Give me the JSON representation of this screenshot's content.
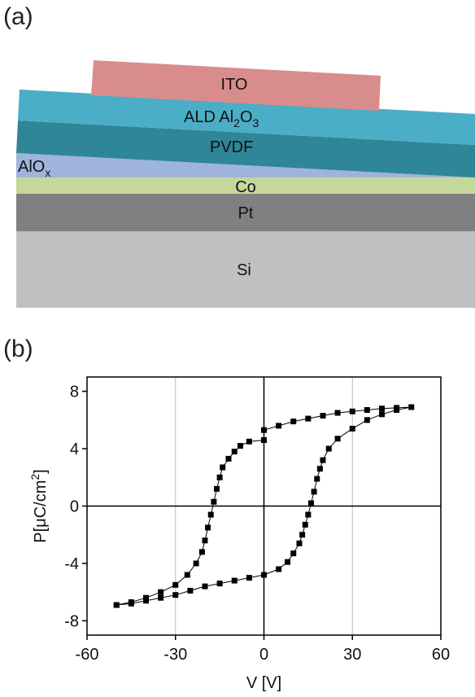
{
  "panels": {
    "a": "(a)",
    "b": "(b)"
  },
  "stack": {
    "layers": [
      {
        "id": "ito",
        "label": "ITO",
        "color": "#d98c8c"
      },
      {
        "id": "al2o3",
        "label": "ALD Al",
        "sub1": "2",
        "mid": "O",
        "sub2": "3",
        "color": "#4aaec6"
      },
      {
        "id": "pvdf",
        "label": "PVDF",
        "color": "#2f8696"
      },
      {
        "id": "aloxa",
        "label": "AlO",
        "sub": "x",
        "color": "#9eb4dc"
      },
      {
        "id": "co",
        "label": "Co",
        "color": "#c4d89a"
      },
      {
        "id": "pt",
        "label": "Pt",
        "color": "#808080"
      },
      {
        "id": "si",
        "label": "Si",
        "color": "#c0c0c0"
      }
    ]
  },
  "chart_data": {
    "type": "scatter",
    "xlabel": "V [V]",
    "ylabel": "P[μC/cm²]",
    "ylabel_parts": {
      "pre": "P[μC/cm",
      "sup": "2",
      "post": "]"
    },
    "xlim": [
      -60,
      60
    ],
    "ylim": [
      -9,
      9
    ],
    "xticks": [
      -60,
      -30,
      0,
      30,
      60
    ],
    "yticks": [
      -8,
      -4,
      0,
      4,
      8
    ],
    "grid": "vertical at -30 and 30",
    "series": [
      {
        "points": [
          [
            -50,
            -6.9
          ],
          [
            -45,
            -6.8
          ],
          [
            -40,
            -6.6
          ],
          [
            -35,
            -6.4
          ],
          [
            -30,
            -6.2
          ],
          [
            -25,
            -5.9
          ],
          [
            -20,
            -5.6
          ],
          [
            -15,
            -5.4
          ],
          [
            -10,
            -5.2
          ],
          [
            -5,
            -5.0
          ],
          [
            0,
            -4.8
          ],
          [
            5,
            -4.4
          ],
          [
            8,
            -3.9
          ],
          [
            10,
            -3.3
          ],
          [
            12,
            -2.6
          ],
          [
            13,
            -2.0
          ],
          [
            14,
            -1.3
          ],
          [
            15,
            -0.6
          ],
          [
            16,
            0.2
          ],
          [
            17,
            1.0
          ],
          [
            18,
            1.9
          ],
          [
            19,
            2.6
          ],
          [
            20,
            3.2
          ],
          [
            22,
            4.0
          ],
          [
            25,
            4.7
          ],
          [
            30,
            5.4
          ],
          [
            35,
            6.0
          ],
          [
            40,
            6.4
          ],
          [
            45,
            6.7
          ],
          [
            50,
            6.9
          ],
          [
            45,
            6.85
          ],
          [
            40,
            6.8
          ],
          [
            35,
            6.7
          ],
          [
            30,
            6.6
          ],
          [
            25,
            6.5
          ],
          [
            20,
            6.3
          ],
          [
            15,
            6.1
          ],
          [
            10,
            5.9
          ],
          [
            5,
            5.6
          ],
          [
            0,
            5.3
          ],
          [
            0,
            4.6
          ],
          [
            -5,
            4.5
          ],
          [
            -8,
            4.2
          ],
          [
            -10,
            3.8
          ],
          [
            -12,
            3.3
          ],
          [
            -14,
            2.7
          ],
          [
            -15,
            2.0
          ],
          [
            -16,
            1.2
          ],
          [
            -17,
            0.3
          ],
          [
            -18,
            -0.6
          ],
          [
            -19,
            -1.5
          ],
          [
            -20,
            -2.4
          ],
          [
            -21,
            -3.2
          ],
          [
            -23,
            -4.0
          ],
          [
            -26,
            -4.8
          ],
          [
            -30,
            -5.5
          ],
          [
            -35,
            -6.0
          ],
          [
            -40,
            -6.4
          ],
          [
            -45,
            -6.7
          ],
          [
            -50,
            -6.9
          ]
        ]
      }
    ]
  }
}
